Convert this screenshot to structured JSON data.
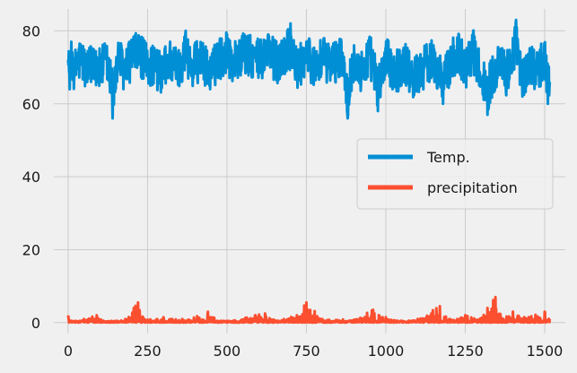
{
  "chart_data": {
    "type": "line",
    "title": "",
    "xlabel": "",
    "ylabel": "",
    "xlim": [
      -45,
      1565
    ],
    "ylim": [
      -3,
      86
    ],
    "grid": true,
    "legend_position": "center-right",
    "x_ticks": [
      0,
      250,
      500,
      750,
      1000,
      1250,
      1500
    ],
    "y_ticks": [
      0,
      20,
      40,
      60,
      80
    ],
    "n_points": 1517,
    "series": [
      {
        "name": "Temp.",
        "color": "#008fd5",
        "description_values": {
          "baseline": 70,
          "min": 56,
          "max": 83
        },
        "keypoints": [
          [
            0,
            72
          ],
          [
            5,
            64
          ],
          [
            10,
            77
          ],
          [
            20,
            68
          ],
          [
            40,
            76
          ],
          [
            60,
            66
          ],
          [
            80,
            75
          ],
          [
            100,
            68
          ],
          [
            120,
            74
          ],
          [
            140,
            56
          ],
          [
            160,
            75
          ],
          [
            180,
            67
          ],
          [
            200,
            77
          ],
          [
            225,
            78
          ],
          [
            250,
            70
          ],
          [
            270,
            73
          ],
          [
            290,
            66
          ],
          [
            320,
            75
          ],
          [
            345,
            68
          ],
          [
            370,
            80
          ],
          [
            390,
            70
          ],
          [
            420,
            76
          ],
          [
            445,
            65
          ],
          [
            470,
            74
          ],
          [
            500,
            79
          ],
          [
            520,
            73
          ],
          [
            550,
            78
          ],
          [
            580,
            76
          ],
          [
            600,
            74
          ],
          [
            630,
            79
          ],
          [
            660,
            72
          ],
          [
            690,
            80
          ],
          [
            700,
            82
          ],
          [
            720,
            68
          ],
          [
            750,
            77
          ],
          [
            780,
            70
          ],
          [
            800,
            75
          ],
          [
            830,
            72
          ],
          [
            860,
            77
          ],
          [
            880,
            56
          ],
          [
            900,
            76
          ],
          [
            920,
            66
          ],
          [
            950,
            78
          ],
          [
            975,
            58
          ],
          [
            1000,
            75
          ],
          [
            1030,
            67
          ],
          [
            1060,
            72
          ],
          [
            1090,
            64
          ],
          [
            1120,
            70
          ],
          [
            1150,
            76
          ],
          [
            1180,
            60
          ],
          [
            1200,
            72
          ],
          [
            1230,
            79
          ],
          [
            1250,
            70
          ],
          [
            1275,
            80
          ],
          [
            1300,
            66
          ],
          [
            1320,
            57
          ],
          [
            1350,
            72
          ],
          [
            1380,
            66
          ],
          [
            1400,
            78
          ],
          [
            1410,
            83
          ],
          [
            1430,
            62
          ],
          [
            1450,
            73
          ],
          [
            1480,
            68
          ],
          [
            1500,
            75
          ],
          [
            1510,
            60
          ],
          [
            1516,
            66
          ]
        ]
      },
      {
        "name": "precipitation",
        "color": "#fc4f30",
        "description_values": {
          "baseline": 0.3,
          "min": 0,
          "max": 7
        },
        "keypoints": [
          [
            0,
            2
          ],
          [
            10,
            0.5
          ],
          [
            50,
            1
          ],
          [
            90,
            2
          ],
          [
            120,
            0.3
          ],
          [
            180,
            1
          ],
          [
            220,
            5.5
          ],
          [
            240,
            1
          ],
          [
            300,
            1.5
          ],
          [
            380,
            0.8
          ],
          [
            440,
            3
          ],
          [
            470,
            0.5
          ],
          [
            520,
            0.5
          ],
          [
            590,
            2
          ],
          [
            620,
            2.5
          ],
          [
            660,
            0.5
          ],
          [
            720,
            2
          ],
          [
            750,
            5.5
          ],
          [
            800,
            1
          ],
          [
            900,
            0.8
          ],
          [
            960,
            3.5
          ],
          [
            1000,
            1.5
          ],
          [
            1050,
            0.5
          ],
          [
            1100,
            1
          ],
          [
            1170,
            4.5
          ],
          [
            1200,
            1
          ],
          [
            1250,
            2
          ],
          [
            1290,
            0.8
          ],
          [
            1320,
            4
          ],
          [
            1345,
            7
          ],
          [
            1370,
            1
          ],
          [
            1400,
            3
          ],
          [
            1450,
            1.5
          ],
          [
            1500,
            3
          ],
          [
            1516,
            1
          ]
        ]
      }
    ]
  }
}
